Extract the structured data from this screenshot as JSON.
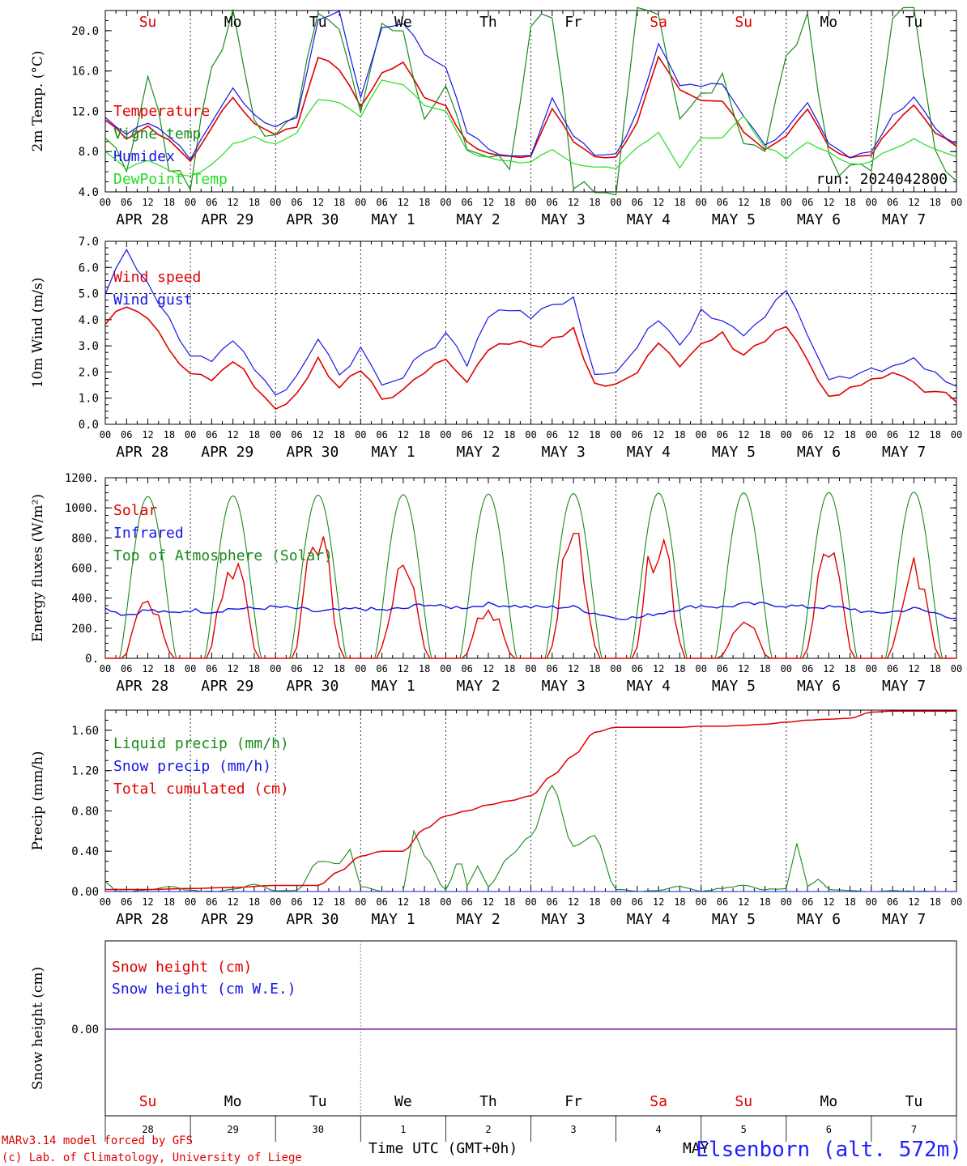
{
  "run_label": "run: 2024042800",
  "hour_labels": [
    "00",
    "06",
    "12",
    "18"
  ],
  "final_hour_label": "00",
  "date_labels": [
    "APR 28",
    "APR 29",
    "APR 30",
    "MAY  1",
    "MAY  2",
    "MAY  3",
    "MAY  4",
    "MAY  5",
    "MAY  6",
    "MAY  7"
  ],
  "weekdays": [
    {
      "label": "Su",
      "color": "#e00000"
    },
    {
      "label": "Mo",
      "color": "#000000"
    },
    {
      "label": "Tu",
      "color": "#000000"
    },
    {
      "label": "We",
      "color": "#000000"
    },
    {
      "label": "Th",
      "color": "#000000"
    },
    {
      "label": "Fr",
      "color": "#000000"
    },
    {
      "label": "Sa",
      "color": "#e00000"
    },
    {
      "label": "Su",
      "color": "#e00000"
    },
    {
      "label": "Mo",
      "color": "#000000"
    },
    {
      "label": "Tu",
      "color": "#000000"
    }
  ],
  "day_numbers": [
    "28",
    "29",
    "30",
    "1",
    "2",
    "3",
    "4",
    "5",
    "6",
    "7"
  ],
  "month_label": "MAY",
  "x_axis_title": "Time UTC (GMT+0h)",
  "station": "Elsenborn (alt. 572m)",
  "credits": [
    "MARv3.14 model forced by GFS",
    "(c) Lab. of Climatology, University of Liege"
  ],
  "colors": {
    "red": "#e00000",
    "blue": "#1515e6",
    "green": "#1a8a1a",
    "lightgreen": "#22dd22",
    "purple": "#7a2a9a"
  },
  "chart_data": [
    {
      "type": "line",
      "ylabel": "2m Temp. (°C)",
      "ylim": [
        4.0,
        22.0
      ],
      "yticks": [
        4.0,
        8.0,
        12.0,
        16.0,
        20.0
      ],
      "ytick_labels": [
        "4.0",
        "8.0",
        "12.0",
        "16.0",
        "20.0"
      ],
      "x_hours": [
        0,
        6,
        12,
        18,
        24,
        30,
        36,
        42,
        48,
        54,
        60,
        66,
        72,
        78,
        84,
        90,
        96,
        102,
        108,
        114,
        120,
        126,
        132,
        138,
        144,
        150,
        156,
        162,
        168,
        174,
        180,
        186,
        192,
        198,
        204,
        210,
        216,
        222,
        228,
        234,
        240
      ],
      "series": [
        {
          "name": "Temperature",
          "color": "red",
          "values": [
            11.0,
            9.4,
            10.4,
            9.2,
            7.0,
            10.5,
            13.4,
            10.8,
            9.8,
            10.5,
            17.5,
            16.2,
            12.5,
            15.8,
            16.8,
            13.5,
            12.6,
            8.8,
            7.8,
            7.4,
            7.6,
            12.3,
            9.0,
            7.6,
            7.4,
            11.0,
            17.3,
            14.0,
            13.0,
            13.0,
            10.0,
            8.3,
            9.5,
            12.3,
            8.3,
            7.4,
            7.8,
            10.5,
            12.6,
            10.0,
            8.4
          ]
        },
        {
          "name": "Vigne temp",
          "color": "green",
          "values": [
            9.5,
            6.2,
            16.0,
            6.5,
            5.0,
            16.0,
            21.5,
            11.0,
            9.0,
            11.5,
            22.0,
            21.0,
            11.5,
            20.5,
            20.0,
            11.0,
            14.0,
            8.0,
            7.2,
            6.8,
            20.0,
            22.0,
            5.0,
            4.5,
            4.0,
            22.0,
            22.0,
            11.0,
            13.0,
            16.0,
            9.0,
            8.0,
            17.0,
            21.0,
            7.0,
            6.0,
            6.0,
            21.0,
            22.0,
            8.0,
            4.5
          ]
        },
        {
          "name": "Humidex",
          "color": "blue",
          "values": [
            11.2,
            9.6,
            10.8,
            9.6,
            7.2,
            11.0,
            14.4,
            11.6,
            10.4,
            11.2,
            21.0,
            21.8,
            13.6,
            20.2,
            20.8,
            17.8,
            16.5,
            10.0,
            8.2,
            7.6,
            7.8,
            13.2,
            9.4,
            7.8,
            7.6,
            12.0,
            18.6,
            14.6,
            14.6,
            14.8,
            11.5,
            8.5,
            10.0,
            12.8,
            8.6,
            7.5,
            8.2,
            11.5,
            13.5,
            10.5,
            8.6
          ]
        },
        {
          "name": "DewPoint Temp",
          "color": "lightgreen",
          "values": [
            8.0,
            6.4,
            7.0,
            6.3,
            5.4,
            6.6,
            8.7,
            9.4,
            8.8,
            10.0,
            13.0,
            12.8,
            11.5,
            15.0,
            14.8,
            12.5,
            12.0,
            8.0,
            7.4,
            7.0,
            7.0,
            8.2,
            6.8,
            6.6,
            6.3,
            8.5,
            10.0,
            6.5,
            9.4,
            9.5,
            11.5,
            8.5,
            7.4,
            9.0,
            7.8,
            6.8,
            7.0,
            8.4,
            9.2,
            8.2,
            7.4
          ]
        }
      ]
    },
    {
      "type": "line",
      "ylabel": "10m Wind (m/s)",
      "ylim": [
        0.0,
        7.0
      ],
      "yticks": [
        0.0,
        1.0,
        2.0,
        3.0,
        4.0,
        5.0,
        6.0,
        7.0
      ],
      "ytick_labels": [
        "0.0",
        "1.0",
        "2.0",
        "3.0",
        "4.0",
        "5.0",
        "6.0",
        "7.0"
      ],
      "x_hours": [
        0,
        6,
        12,
        18,
        24,
        30,
        36,
        42,
        48,
        54,
        60,
        66,
        72,
        78,
        84,
        90,
        96,
        102,
        108,
        114,
        120,
        126,
        132,
        138,
        144,
        150,
        156,
        162,
        168,
        174,
        180,
        186,
        192,
        198,
        204,
        210,
        216,
        222,
        228,
        234,
        240
      ],
      "series": [
        {
          "name": "Wind speed",
          "color": "red",
          "values": [
            3.7,
            4.6,
            4.0,
            3.0,
            1.8,
            1.8,
            2.5,
            1.5,
            0.5,
            1.2,
            2.5,
            1.3,
            2.1,
            1.0,
            1.3,
            2.1,
            2.4,
            1.6,
            3.0,
            3.2,
            2.9,
            3.3,
            3.6,
            1.4,
            1.4,
            2.1,
            3.2,
            2.2,
            3.1,
            3.4,
            2.6,
            3.3,
            3.8,
            2.4,
            1.1,
            1.3,
            1.6,
            1.9,
            1.5,
            1.2,
            0.9
          ]
        },
        {
          "name": "Wind gust",
          "color": "blue",
          "values": [
            5.1,
            6.6,
            5.5,
            4.0,
            2.6,
            2.5,
            3.3,
            2.2,
            1.0,
            1.8,
            3.4,
            1.9,
            2.9,
            1.5,
            1.8,
            2.8,
            3.4,
            2.4,
            4.2,
            4.4,
            4.0,
            4.6,
            4.9,
            1.9,
            2.0,
            3.0,
            4.1,
            3.0,
            4.4,
            3.9,
            3.5,
            4.2,
            5.1,
            3.4,
            1.6,
            1.9,
            2.0,
            2.2,
            2.5,
            1.9,
            1.3
          ]
        }
      ],
      "reference_line": 5.0
    },
    {
      "type": "line",
      "ylabel": "Energy fluxes (W/m²)",
      "ylim": [
        0,
        1200
      ],
      "yticks": [
        0,
        200,
        400,
        600,
        800,
        1000,
        1200
      ],
      "ytick_labels": [
        "0.",
        "200.",
        "400.",
        "600.",
        "800.",
        "1000.",
        "1200."
      ],
      "daily_peaks": {
        "Top of Atmosphere (Solar)": [
          1075,
          1080,
          1085,
          1088,
          1092,
          1095,
          1098,
          1100,
          1102,
          1105
        ],
        "Solar": [
          380,
          690,
          810,
          680,
          320,
          830,
          820,
          240,
          700,
          670
        ]
      },
      "series": [
        {
          "name": "Solar",
          "color": "red"
        },
        {
          "name": "Infrared",
          "color": "blue",
          "x_hours": [
            0,
            6,
            12,
            18,
            24,
            30,
            36,
            42,
            48,
            54,
            60,
            66,
            72,
            78,
            84,
            90,
            96,
            102,
            108,
            114,
            120,
            126,
            132,
            138,
            144,
            150,
            156,
            162,
            168,
            174,
            180,
            186,
            192,
            198,
            204,
            210,
            216,
            222,
            228,
            234,
            240
          ],
          "values": [
            330,
            290,
            320,
            300,
            320,
            310,
            330,
            330,
            340,
            330,
            310,
            320,
            330,
            320,
            330,
            360,
            340,
            340,
            360,
            350,
            340,
            340,
            340,
            300,
            270,
            270,
            300,
            330,
            350,
            340,
            360,
            360,
            350,
            340,
            340,
            330,
            300,
            310,
            330,
            300,
            270
          ]
        },
        {
          "name": "Top of Atmosphere (Solar)",
          "color": "green"
        }
      ]
    },
    {
      "type": "line",
      "ylabel": "Precip (mm/h)",
      "ylim": [
        0.0,
        1.8
      ],
      "yticks": [
        0.0,
        0.4,
        0.8,
        1.2,
        1.6
      ],
      "ytick_labels": [
        "0.00",
        "0.40",
        "0.80",
        "1.20",
        "1.60"
      ],
      "series": [
        {
          "name": "Liquid precip (mm/h)",
          "color": "green",
          "x_hours": [
            0,
            3,
            6,
            12,
            18,
            24,
            30,
            36,
            42,
            48,
            54,
            60,
            66,
            69,
            72,
            78,
            84,
            87,
            90,
            96,
            100,
            102,
            105,
            108,
            114,
            120,
            126,
            132,
            138,
            144,
            150,
            156,
            162,
            168,
            174,
            180,
            186,
            192,
            195,
            198,
            201,
            204,
            210,
            216,
            222,
            228,
            234,
            240
          ],
          "values": [
            0.1,
            0.0,
            0.0,
            0.02,
            0.05,
            0.01,
            0.0,
            0.02,
            0.07,
            0.01,
            0.01,
            0.3,
            0.28,
            0.42,
            0.05,
            0.0,
            0.0,
            0.6,
            0.35,
            0.02,
            0.32,
            0.05,
            0.25,
            0.05,
            0.35,
            0.55,
            1.05,
            0.45,
            0.55,
            0.02,
            0.0,
            0.01,
            0.05,
            0.0,
            0.03,
            0.06,
            0.02,
            0.03,
            0.48,
            0.05,
            0.12,
            0.02,
            0.01,
            0.0,
            0.01,
            0.0,
            0.0,
            0.0
          ]
        },
        {
          "name": "Snow precip (mm/h)",
          "color": "blue",
          "x_hours": [
            0,
            240
          ],
          "values": [
            0.0,
            0.0
          ]
        },
        {
          "name": "Total cumulated (cm)",
          "color": "red",
          "x_hours": [
            0,
            12,
            24,
            36,
            48,
            60,
            66,
            72,
            78,
            84,
            90,
            96,
            102,
            108,
            114,
            120,
            126,
            132,
            138,
            144,
            150,
            156,
            162,
            168,
            174,
            180,
            186,
            192,
            198,
            204,
            210,
            216,
            222,
            228,
            234,
            240
          ],
          "values": [
            0.02,
            0.02,
            0.03,
            0.04,
            0.06,
            0.06,
            0.2,
            0.35,
            0.4,
            0.4,
            0.62,
            0.75,
            0.8,
            0.86,
            0.9,
            0.95,
            1.15,
            1.35,
            1.58,
            1.63,
            1.63,
            1.63,
            1.63,
            1.64,
            1.64,
            1.65,
            1.66,
            1.68,
            1.7,
            1.71,
            1.72,
            1.78,
            1.79,
            1.79,
            1.79,
            1.79
          ]
        }
      ]
    },
    {
      "type": "line",
      "ylabel": "Snow height (cm)",
      "yticks": [
        0.0
      ],
      "ytick_labels": [
        "0.00"
      ],
      "series": [
        {
          "name": "Snow height (cm)",
          "color": "red",
          "x_hours": [
            0,
            240
          ],
          "values": [
            0.0,
            0.0
          ]
        },
        {
          "name": "Snow height (cm W.E.)",
          "color": "blue",
          "x_hours": [
            0,
            240
          ],
          "values": [
            0.0,
            0.0
          ]
        }
      ]
    }
  ]
}
